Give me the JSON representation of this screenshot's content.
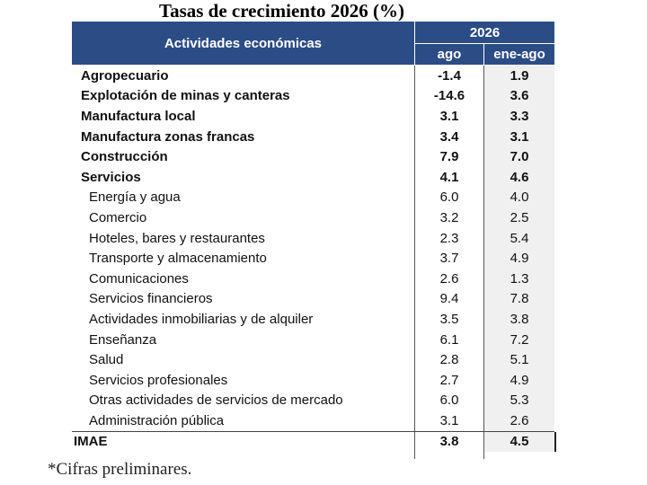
{
  "title": "Tasas de crecimiento 2026 (%)",
  "header": {
    "activity_label": "Actividades económicas",
    "year": "2026",
    "col1": "ago",
    "col2": "ene-ago"
  },
  "rows": [
    {
      "label": "Agropecuario",
      "ago": "-1.4",
      "ene_ago": "1.9",
      "style": "bold"
    },
    {
      "label": "Explotación de minas y canteras",
      "ago": "-14.6",
      "ene_ago": "3.6",
      "style": "bold"
    },
    {
      "label": "Manufactura local",
      "ago": "3.1",
      "ene_ago": "3.3",
      "style": "bold"
    },
    {
      "label": "Manufactura zonas francas",
      "ago": "3.4",
      "ene_ago": "3.1",
      "style": "bold"
    },
    {
      "label": "Construcción",
      "ago": "7.9",
      "ene_ago": "7.0",
      "style": "bold"
    },
    {
      "label": "Servicios",
      "ago": "4.1",
      "ene_ago": "4.6",
      "style": "bold"
    },
    {
      "label": "Energía y agua",
      "ago": "6.0",
      "ene_ago": "4.0",
      "style": "sub"
    },
    {
      "label": "Comercio",
      "ago": "3.2",
      "ene_ago": "2.5",
      "style": "sub"
    },
    {
      "label": "Hoteles, bares y restaurantes",
      "ago": "2.3",
      "ene_ago": "5.4",
      "style": "sub"
    },
    {
      "label": "Transporte y almacenamiento",
      "ago": "3.7",
      "ene_ago": "4.9",
      "style": "sub"
    },
    {
      "label": "Comunicaciones",
      "ago": "2.6",
      "ene_ago": "1.3",
      "style": "sub"
    },
    {
      "label": "Servicios financieros",
      "ago": "9.4",
      "ene_ago": "7.8",
      "style": "sub"
    },
    {
      "label": "Actividades inmobiliarias y de alquiler",
      "ago": "3.5",
      "ene_ago": "3.8",
      "style": "sub"
    },
    {
      "label": "Enseñanza",
      "ago": "6.1",
      "ene_ago": "7.2",
      "style": "sub"
    },
    {
      "label": "Salud",
      "ago": "2.8",
      "ene_ago": "5.1",
      "style": "sub"
    },
    {
      "label": "Servicios profesionales",
      "ago": "2.7",
      "ene_ago": "4.9",
      "style": "sub"
    },
    {
      "label": "Otras actividades de servicios de mercado",
      "ago": "6.0",
      "ene_ago": "5.3",
      "style": "sub"
    },
    {
      "label": "Administración pública",
      "ago": "3.1",
      "ene_ago": "2.6",
      "style": "sub"
    },
    {
      "label": "IMAE",
      "ago": "3.8",
      "ene_ago": "4.5",
      "style": "imae"
    }
  ],
  "footnote": "*Cifras preliminares.",
  "colors": {
    "header_bg": "#2c4c86",
    "header_text": "#ffffff",
    "col2_bg": "#f0f0f0"
  }
}
